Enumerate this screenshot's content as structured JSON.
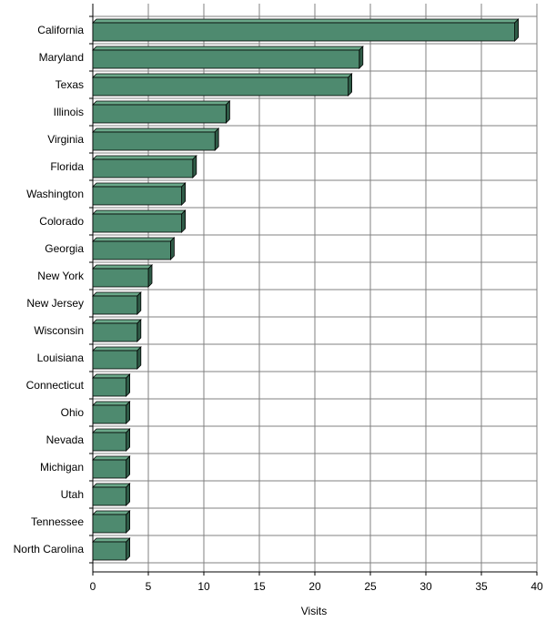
{
  "chart_data": {
    "type": "bar",
    "orientation": "horizontal",
    "title": "",
    "xlabel": "Visits",
    "ylabel": "",
    "xlim": [
      0,
      40
    ],
    "x_ticks": [
      0,
      5,
      10,
      15,
      20,
      25,
      30,
      35,
      40
    ],
    "grid": true,
    "legend": "none",
    "categories": [
      "California",
      "Maryland",
      "Texas",
      "Illinois",
      "Virginia",
      "Florida",
      "Washington",
      "Colorado",
      "Georgia",
      "New York",
      "New Jersey",
      "Wisconsin",
      "Louisiana",
      "Connecticut",
      "Ohio",
      "Nevada",
      "Michigan",
      "Utah",
      "Tennessee",
      "North Carolina"
    ],
    "series": [
      {
        "values": [
          38,
          24,
          23,
          12,
          11,
          9,
          8,
          8,
          7,
          5,
          4,
          4,
          4,
          3,
          3,
          3,
          3,
          3,
          3,
          3
        ]
      }
    ],
    "colors": {
      "bar_front": "#4e8a6f",
      "bar_top": "#6aa889",
      "bar_side": "#2f5b47",
      "grid": "#808080",
      "axis": "#000000"
    }
  }
}
